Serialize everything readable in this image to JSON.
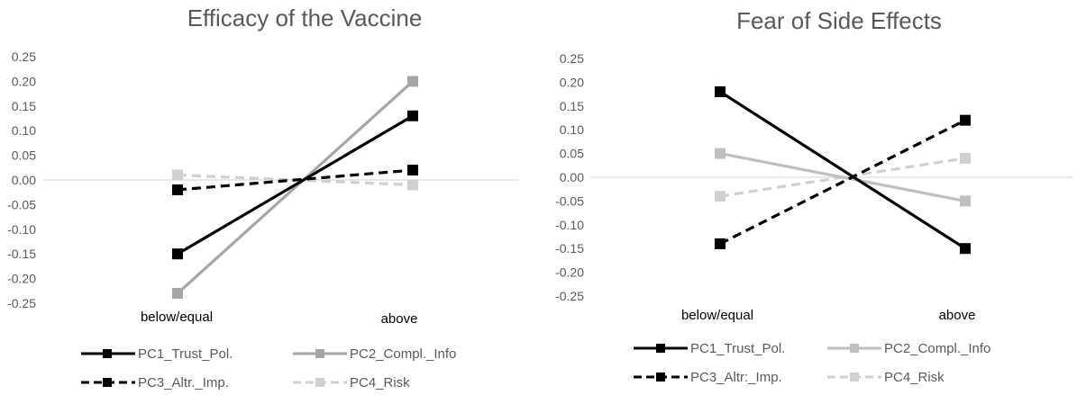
{
  "chart_data": [
    {
      "type": "line",
      "title": "Efficacy of the Vaccine",
      "categories": [
        "below/equal",
        "above"
      ],
      "ylim": [
        -0.25,
        0.25
      ],
      "yticks": [
        "0.25",
        "0.20",
        "0.15",
        "0.10",
        "0.05",
        "0.00",
        "-0.05",
        "-0.10",
        "-0.15",
        "-0.20",
        "-0.25"
      ],
      "grid": false,
      "legend": "bottom",
      "series": [
        {
          "name": "PC1_Trust_Pol.",
          "values": [
            -0.15,
            0.13
          ],
          "color": "#000000",
          "dashed": false
        },
        {
          "name": "PC2_Compl._Info",
          "values": [
            -0.23,
            0.2
          ],
          "color": "#a6a6a6",
          "dashed": false
        },
        {
          "name": "PC3_Altr._Imp.",
          "values": [
            -0.02,
            0.02
          ],
          "color": "#000000",
          "dashed": true
        },
        {
          "name": "PC4_Risk",
          "values": [
            0.01,
            -0.01
          ],
          "color": "#d0d0d0",
          "dashed": true
        }
      ]
    },
    {
      "type": "line",
      "title": "Fear of Side Effects",
      "categories": [
        "below/equal",
        "above"
      ],
      "ylim": [
        -0.25,
        0.25
      ],
      "yticks": [
        "0.25",
        "0.20",
        "0.15",
        "0.10",
        "0.05",
        "0.00",
        "-0.05",
        "-0.10",
        "-0.15",
        "-0.20",
        "-0.25"
      ],
      "grid": false,
      "legend": "bottom",
      "series": [
        {
          "name": "PC1_Trust_Pol.",
          "values": [
            0.18,
            -0.15
          ],
          "color": "#000000",
          "dashed": false
        },
        {
          "name": "PC2_Compl._Info",
          "values": [
            0.05,
            -0.05
          ],
          "color": "#bfbfbf",
          "dashed": false
        },
        {
          "name": "PC3_Altr:_Imp.",
          "values": [
            -0.14,
            0.12
          ],
          "color": "#000000",
          "dashed": true
        },
        {
          "name": "PC4_Risk",
          "values": [
            -0.04,
            0.04
          ],
          "color": "#d0d0d0",
          "dashed": true
        }
      ]
    }
  ]
}
